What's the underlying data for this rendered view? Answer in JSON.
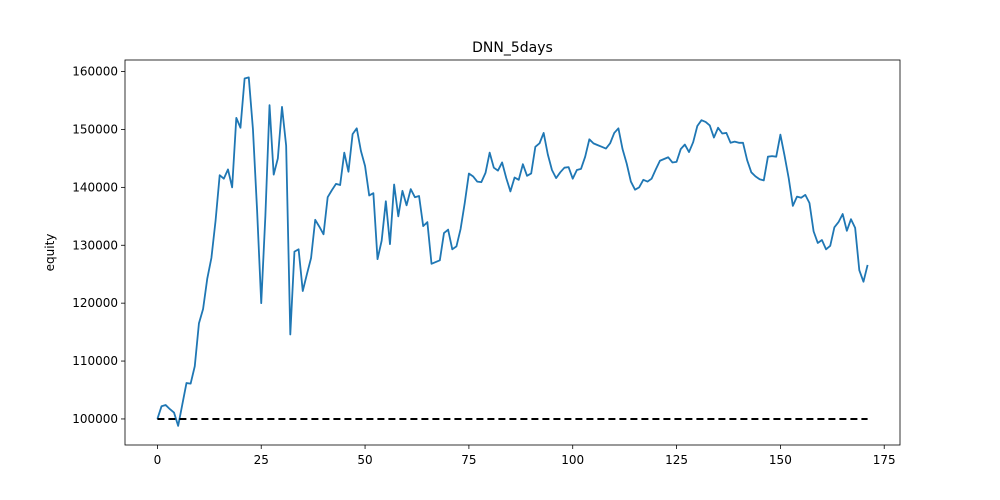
{
  "chart_data": {
    "type": "line",
    "title": "DNN_5days",
    "xlabel": "",
    "ylabel": "equity",
    "xlim": [
      -7.8,
      178.8
    ],
    "ylim": [
      95500,
      162000
    ],
    "xticks": [
      0,
      25,
      50,
      75,
      100,
      125,
      150,
      175
    ],
    "yticks": [
      100000,
      110000,
      120000,
      130000,
      140000,
      150000,
      160000
    ],
    "grid": false,
    "legend": "none",
    "colors": {
      "equity_line": "#1f77b4",
      "baseline": "#000000"
    },
    "series": [
      {
        "style": "solid",
        "x": [
          0,
          1,
          2,
          3,
          4,
          5,
          6,
          7,
          8,
          9,
          10,
          11,
          12,
          13,
          14,
          15,
          16,
          17,
          18,
          19,
          20,
          21,
          22,
          23,
          24,
          25,
          26,
          27,
          28,
          29,
          30,
          31,
          32,
          33,
          34,
          35,
          36,
          37,
          38,
          39,
          40,
          41,
          42,
          43,
          44,
          45,
          46,
          47,
          48,
          49,
          50,
          51,
          52,
          53,
          54,
          55,
          56,
          57,
          58,
          59,
          60,
          61,
          62,
          63,
          64,
          65,
          66,
          67,
          68,
          69,
          70,
          71,
          72,
          73,
          74,
          75,
          76,
          77,
          78,
          79,
          80,
          81,
          82,
          83,
          84,
          85,
          86,
          87,
          88,
          89,
          90,
          91,
          92,
          93,
          94,
          95,
          96,
          97,
          98,
          99,
          100,
          101,
          102,
          103,
          104,
          105,
          106,
          107,
          108,
          109,
          110,
          111,
          112,
          113,
          114,
          115,
          116,
          117,
          118,
          119,
          120,
          121,
          122,
          123,
          124,
          125,
          126,
          127,
          128,
          129,
          130,
          131,
          132,
          133,
          134,
          135,
          136,
          137,
          138,
          139,
          140,
          141,
          142,
          143,
          144,
          145,
          146,
          147,
          148,
          149,
          150,
          151,
          152,
          153,
          154,
          155,
          156,
          157,
          158,
          159,
          160,
          161,
          162,
          163,
          164,
          165,
          166,
          167,
          168,
          169,
          170,
          171
        ],
        "y": [
          100000,
          102200,
          102400,
          101700,
          101100,
          98800,
          102500,
          106200,
          106100,
          109100,
          116500,
          119000,
          124200,
          127800,
          134200,
          142100,
          141500,
          143100,
          140000,
          152000,
          150300,
          158800,
          159000,
          150100,
          136100,
          120000,
          135100,
          154200,
          142200,
          145000,
          153900,
          147200,
          114600,
          128900,
          129300,
          122100,
          125000,
          127800,
          134400,
          133200,
          131900,
          138300,
          139500,
          140600,
          140400,
          146000,
          142700,
          149200,
          150200,
          146300,
          143700,
          138600,
          139000,
          127600,
          130800,
          137600,
          130200,
          140500,
          135000,
          139400,
          136900,
          139700,
          138300,
          138500,
          133300,
          134000,
          126800,
          127100,
          127400,
          132100,
          132700,
          129300,
          129800,
          132800,
          137300,
          142400,
          141900,
          141000,
          140900,
          142500,
          146000,
          143400,
          142900,
          144300,
          141600,
          139300,
          141700,
          141300,
          144000,
          142000,
          142400,
          147000,
          147600,
          149400,
          145700,
          143000,
          141600,
          142600,
          143400,
          143500,
          141500,
          143000,
          143200,
          145300,
          148300,
          147600,
          147300,
          147000,
          146700,
          147600,
          149400,
          150200,
          146600,
          144100,
          141000,
          139600,
          140000,
          141300,
          141000,
          141500,
          143100,
          144600,
          144900,
          145200,
          144300,
          144400,
          146600,
          147400,
          146100,
          147800,
          150600,
          151600,
          151300,
          150700,
          148600,
          150300,
          149300,
          149400,
          147700,
          147900,
          147700,
          147700,
          144700,
          142600,
          141900,
          141400,
          141200,
          145300,
          145400,
          145300,
          149100,
          145500,
          141600,
          136800,
          138400,
          138200,
          138700,
          137300,
          132400,
          130400,
          130900,
          129300,
          129900,
          133100,
          134000,
          135400,
          132500,
          134500,
          133000,
          125700,
          123700,
          126600
        ]
      },
      {
        "style": "dashed",
        "x": [
          0,
          171
        ],
        "y": [
          100000,
          100000
        ]
      }
    ]
  }
}
